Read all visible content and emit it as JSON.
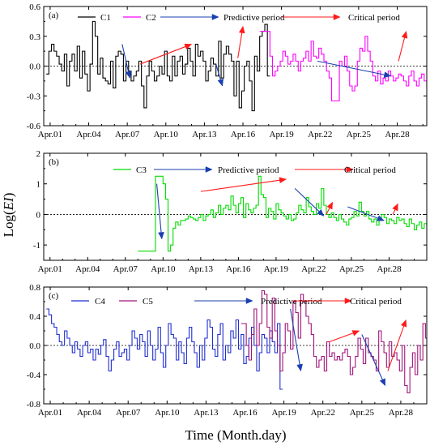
{
  "colors": {
    "C1": "#000000",
    "C2": "#ff00ff",
    "C3": "#00dd00",
    "C4": "#1f2fd0",
    "C5": "#a0157a",
    "predictive": "#1a3fb0",
    "critical": "#ff1a1a"
  },
  "xlabel": "Time (Month.day)",
  "ylabel_prefix": "Log(",
  "ylabel_var": "EI",
  "ylabel_suffix": ")",
  "legend": {
    "predictive": "Predictive period",
    "critical": "Critical period"
  },
  "chart_data": [
    {
      "type": "line",
      "panel": "(a)",
      "xlim": [
        0.5,
        30.3
      ],
      "ylim": [
        -0.6,
        0.6
      ],
      "yticks": [
        -0.6,
        -0.3,
        0.0,
        0.3,
        0.6
      ],
      "ytick_labels": [
        "-0.6",
        "-0.3",
        "0.0",
        "0.3",
        "0.6"
      ],
      "xticks": [
        1,
        4,
        7,
        10,
        13,
        16,
        19,
        22,
        25,
        28
      ],
      "xtick_labels": [
        "Apr.01",
        "Apr.04",
        "Apr.07",
        "Apr.10",
        "Apr.13",
        "Apr.16",
        "Apr.19",
        "Apr.22",
        "Apr.25",
        "Apr.28"
      ],
      "series": [
        {
          "name": "C1",
          "start": 0.7,
          "step": 0.2,
          "values": [
            -0.08,
            0.15,
            0.22,
            0.15,
            0.1,
            0.02,
            -0.05,
            0.12,
            -0.2,
            0.05,
            0.12,
            -0.05,
            0.2,
            -0.12,
            0.15,
            -0.08,
            -0.25,
            0.02,
            0.45,
            0.3,
            -0.08,
            0.08,
            -0.12,
            -0.15,
            -0.18,
            0.05,
            -0.22,
            0.1,
            0.15,
            0.12,
            -0.15,
            0.05,
            -0.05,
            -0.15,
            -0.1,
            -0.05,
            0.05,
            -0.2,
            -0.42,
            -0.1,
            0.05,
            -0.05,
            -0.15,
            -0.1,
            0.0,
            -0.08,
            0.15,
            -0.1,
            -0.15,
            0.1,
            -0.1,
            0.05,
            0.1,
            -0.08,
            0.02,
            0.18,
            0.05,
            -0.1,
            0.22,
            0.1,
            0.15,
            0.05,
            -0.15,
            -0.05,
            0.08,
            0.02,
            -0.1,
            0.25,
            -0.12,
            0.12,
            0.2,
            0.12,
            0.05,
            -0.3,
            0.05,
            -0.42,
            -0.25,
            0.0,
            0.05,
            -0.15,
            -0.45,
            0.1,
            -0.05,
            0.3,
            0.35,
            0.42,
            -0.1
          ]
        },
        {
          "name": "C2",
          "start": 17.3,
          "step": 0.2,
          "values": [
            0.35,
            0.35,
            0.35,
            0.35,
            0.1,
            -0.1,
            -0.05,
            0.0,
            0.05,
            0.15,
            0.1,
            0.02,
            0.05,
            0.12,
            0.05,
            -0.05,
            0.05,
            0.08,
            0.15,
            0.05,
            0.25,
            0.1,
            0.08,
            0.18,
            0.12,
            0.05,
            -0.05,
            -0.12,
            -0.35,
            -0.35,
            -0.35,
            0.05,
            0.0,
            0.1,
            -0.05,
            -0.2,
            -0.25,
            -0.2,
            0.05,
            0.18,
            0.15,
            0.3,
            0.15,
            0.05,
            -0.1,
            -0.15,
            -0.05,
            -0.18,
            -0.12,
            -0.15,
            -0.05,
            -0.1,
            -0.15,
            -0.12,
            -0.08,
            -0.1,
            -0.15,
            -0.2,
            -0.1,
            -0.05,
            -0.15,
            -0.2,
            -0.12,
            -0.08,
            -0.15,
            -0.22,
            -0.4,
            -0.25,
            -0.1,
            0.2,
            0.25,
            0.4,
            0.4,
            0.3,
            0.25,
            0.35,
            0.3,
            0.2,
            0.15,
            0.35,
            0.3,
            0.15,
            0.05,
            -0.1
          ]
        }
      ],
      "arrows": [
        {
          "kind": "predictive",
          "from": [
            6.6,
            0.22
          ],
          "to": [
            7.2,
            -0.12
          ]
        },
        {
          "kind": "critical",
          "from": [
            8.0,
            0.02
          ],
          "to": [
            12.0,
            0.22
          ]
        },
        {
          "kind": "predictive",
          "from": [
            13.9,
            0.02
          ],
          "to": [
            14.4,
            -0.2
          ]
        },
        {
          "kind": "critical",
          "from": [
            15.6,
            0.08
          ],
          "to": [
            16.0,
            0.4
          ]
        },
        {
          "kind": "predictive",
          "from": [
            21.8,
            0.05
          ],
          "to": [
            27.5,
            -0.1
          ]
        },
        {
          "kind": "critical",
          "from": [
            28.1,
            0.05
          ],
          "to": [
            28.7,
            0.35
          ]
        }
      ]
    },
    {
      "type": "line",
      "panel": "(b)",
      "xlim": [
        0.5,
        31.0
      ],
      "ylim": [
        -1.5,
        2
      ],
      "yticks": [
        -1,
        0,
        1,
        2
      ],
      "ytick_labels": [
        "-1",
        "0",
        "1",
        "2"
      ],
      "xticks": [
        1,
        4,
        7,
        10,
        13,
        16,
        19,
        22,
        25,
        28
      ],
      "xtick_labels": [
        "Apr.01",
        "Apr.04",
        "Apr.07",
        "Apr.10",
        "Apr.13",
        "Apr.16",
        "Apr.19",
        "Apr.22",
        "Apr.25",
        "Apr.28"
      ],
      "series": [
        {
          "name": "C3",
          "start": 8.0,
          "step": 0.2,
          "values": [
            -1.2,
            -1.2,
            -1.2,
            -1.2,
            -1.2,
            -1.2,
            -1.2,
            1.25,
            1.25,
            1.25,
            1.0,
            0.5,
            -1.2,
            -1.0,
            -0.45,
            -0.25,
            -0.35,
            -0.2,
            -0.2,
            -0.15,
            -0.05,
            -0.1,
            -0.15,
            -0.2,
            -0.1,
            0.0,
            -0.2,
            -0.05,
            0.0,
            0.15,
            -0.1,
            0.05,
            0.3,
            0.0,
            0.2,
            0.3,
            0.15,
            0.6,
            0.3,
            0.05,
            0.35,
            0.55,
            -0.1,
            0.35,
            0.15,
            0.05,
            0.2,
            0.3,
            1.25,
            0.65,
            0.55,
            -0.1,
            0.2,
            0.1,
            -0.15,
            0.35,
            0.15,
            0.05,
            -0.05,
            -0.15,
            0.0,
            -0.2,
            -0.15,
            0.05,
            0.3,
            0.15,
            0.05,
            0.55,
            0.25,
            0.1,
            0.0,
            0.35,
            0.2,
            0.85,
            0.3,
            0.0,
            -0.1,
            0.05,
            -0.1,
            -0.2,
            0.0,
            -0.15,
            -0.25,
            -0.35,
            -0.15,
            -0.1,
            0.1,
            -0.05,
            0.4,
            0.1,
            -0.05,
            0.1,
            -0.15,
            -0.25,
            -0.15,
            -0.35,
            -0.2,
            0.0,
            -0.1,
            -0.3,
            -0.15,
            -0.2,
            -0.3,
            -0.1,
            -0.2,
            -0.15,
            -0.3,
            -0.4,
            -0.15,
            -0.3,
            -0.5,
            -0.35,
            -0.25,
            -0.45,
            -0.3,
            -0.4,
            0.35,
            -0.2,
            -0.4,
            -0.55
          ]
        }
      ],
      "arrows": [
        {
          "kind": "predictive",
          "from": [
            9.5,
            1.0
          ],
          "to": [
            9.9,
            -0.8
          ]
        },
        {
          "kind": "critical",
          "from": [
            13.0,
            0.75
          ],
          "to": [
            19.8,
            1.15
          ]
        },
        {
          "kind": "predictive",
          "from": [
            20.5,
            0.85
          ],
          "to": [
            22.8,
            -0.05
          ]
        },
        {
          "kind": "critical",
          "from": [
            23.0,
            0.0
          ],
          "to": [
            23.5,
            0.4
          ]
        },
        {
          "kind": "predictive",
          "from": [
            24.7,
            0.25
          ],
          "to": [
            27.6,
            -0.2
          ]
        },
        {
          "kind": "critical",
          "from": [
            28.3,
            0.0
          ],
          "to": [
            28.7,
            0.35
          ]
        }
      ]
    },
    {
      "type": "line",
      "panel": "(c)",
      "xlim": [
        0.5,
        30.0
      ],
      "ylim": [
        -0.8,
        0.8
      ],
      "yticks": [
        -0.8,
        -0.4,
        0.0,
        0.4,
        0.8
      ],
      "ytick_labels": [
        "-0.8",
        "-0.4",
        "0.0",
        "0.4",
        "0.8"
      ],
      "xticks": [
        1,
        4,
        7,
        10,
        13,
        16,
        19,
        22,
        25,
        28
      ],
      "xtick_labels": [
        "Apr.01",
        "Apr.04",
        "Apr.07",
        "Apr.10",
        "Apr.13",
        "Apr.16",
        "Apr.19",
        "Apr.22",
        "Apr.25",
        "Apr.28"
      ],
      "series": [
        {
          "name": "C4",
          "start": 0.7,
          "step": 0.2,
          "values": [
            0.5,
            0.42,
            0.3,
            0.25,
            0.15,
            0.05,
            0.0,
            0.2,
            0.1,
            0.0,
            -0.1,
            0.05,
            -0.05,
            -0.15,
            0.0,
            0.05,
            -0.1,
            -0.05,
            -0.2,
            -0.05,
            -0.12,
            0.0,
            0.08,
            -0.15,
            -0.35,
            -0.2,
            -0.05,
            0.05,
            -0.15,
            -0.1,
            -0.05,
            -0.2,
            0.0,
            0.2,
            0.1,
            -0.05,
            0.15,
            0.05,
            -0.15,
            0.2,
            0.0,
            -0.2,
            -0.05,
            0.25,
            -0.1,
            -0.3,
            0.0,
            0.3,
            0.15,
            0.1,
            -0.2,
            0.05,
            -0.1,
            -0.25,
            0.1,
            0.25,
            0.05,
            -0.1,
            -0.3,
            0.0,
            -0.2,
            0.1,
            0.35,
            0.25,
            -0.05,
            -0.15,
            0.15,
            0.3,
            -0.2,
            0.0,
            -0.1,
            0.2,
            0.1,
            0.35,
            -0.05,
            0.15,
            -0.25,
            -0.15,
            0.1,
            0.25,
            0.0,
            -0.35,
            -0.1,
            0.15,
            0.1,
            -0.1,
            0.2,
            0.05,
            -0.1,
            0.3,
            -0.6
          ]
        },
        {
          "name": "C5",
          "start": 15.7,
          "step": 0.2,
          "values": [
            0.3,
            0.3,
            0.0,
            -0.2,
            0.15,
            0.5,
            0.0,
            0.3,
            0.75,
            0.7,
            0.25,
            0.1,
            0.65,
            0.2,
            0.0,
            -0.35,
            -0.1,
            0.3,
            0.2,
            -0.05,
            0.6,
            0.45,
            0.1,
            0.7,
            0.6,
            0.4,
            0.3,
            0.15,
            -0.15,
            -0.3,
            -0.2,
            -0.15,
            -0.35,
            0.05,
            -0.15,
            -0.1,
            -0.2,
            -0.15,
            -0.2,
            -0.1,
            -0.05,
            -0.15,
            -0.4,
            -0.3,
            -0.15,
            0.1,
            -0.05,
            -0.25,
            0.1,
            -0.1,
            -0.15,
            -0.2,
            -0.35,
            0.2,
            0.05,
            -0.1,
            -0.3,
            0.05,
            -0.15,
            -0.1,
            -0.2,
            -0.35,
            0.0,
            -0.55,
            -0.65,
            -0.3,
            -0.1,
            -0.4,
            0.0,
            -0.2,
            0.3,
            0.1,
            -0.1,
            0.0,
            0.15,
            0.2,
            0.05,
            -0.1,
            0.15,
            0.05,
            0.0,
            0.1
          ]
        }
      ],
      "arrows": [
        {
          "kind": "predictive",
          "from": [
            19.5,
            0.5
          ],
          "to": [
            20.3,
            -0.35
          ]
        },
        {
          "kind": "critical",
          "from": [
            22.5,
            0.05
          ],
          "to": [
            24.8,
            0.2
          ]
        },
        {
          "kind": "predictive",
          "from": [
            25.0,
            0.15
          ],
          "to": [
            26.8,
            -0.55
          ]
        },
        {
          "kind": "critical",
          "from": [
            27.0,
            -0.35
          ],
          "to": [
            28.4,
            0.35
          ]
        }
      ]
    }
  ]
}
